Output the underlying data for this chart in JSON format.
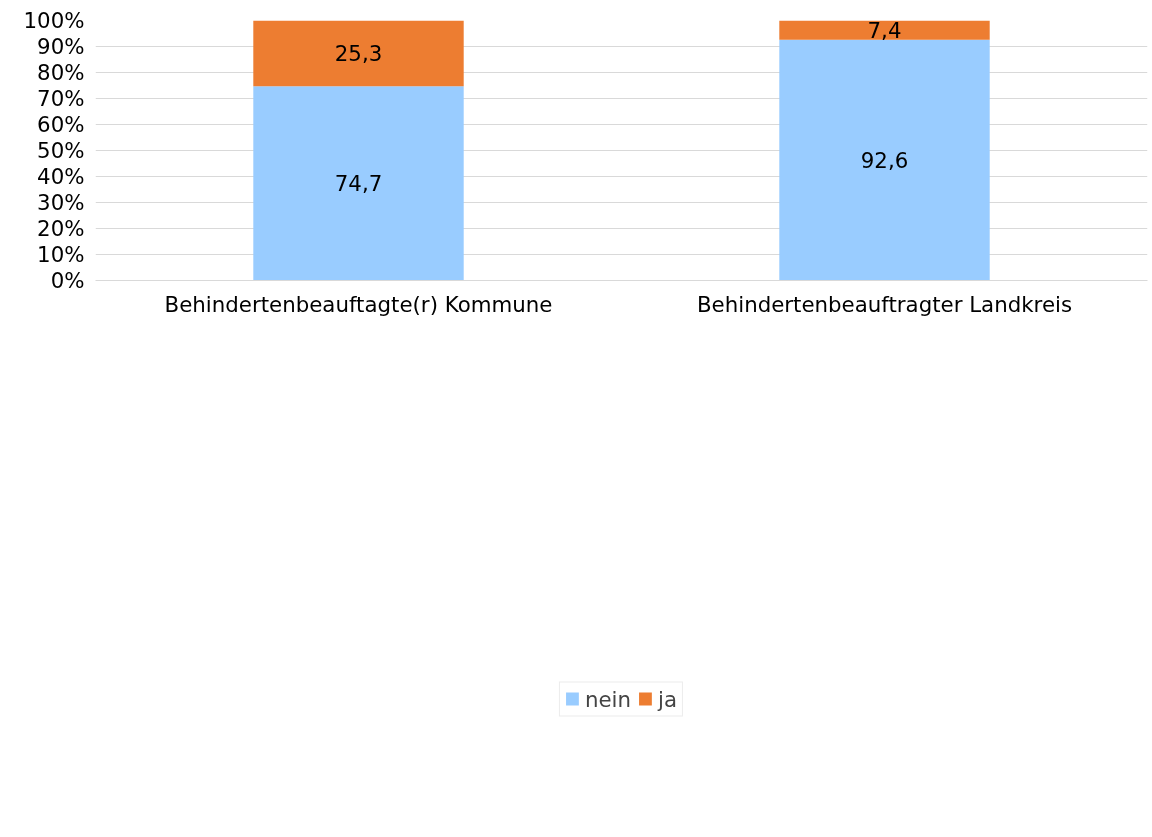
{
  "chart_data": {
    "type": "bar",
    "stacked": true,
    "categories": [
      "Behindertenbeauftagte(r) Kommune",
      "Behindertenbeauftragter Landkreis"
    ],
    "series": [
      {
        "name": "nein",
        "color": "#99ccff",
        "values": [
          74.7,
          92.6
        ],
        "value_labels": [
          "74,7",
          "92,6"
        ]
      },
      {
        "name": "ja",
        "color": "#ed7d31",
        "values": [
          25.3,
          7.4
        ],
        "value_labels": [
          "25,3",
          "7,4"
        ]
      }
    ],
    "ylim": [
      0,
      100
    ],
    "yticks": [
      {
        "value": 0,
        "label": "0%"
      },
      {
        "value": 10,
        "label": "10%"
      },
      {
        "value": 20,
        "label": "20%"
      },
      {
        "value": 30,
        "label": "30%"
      },
      {
        "value": 40,
        "label": "40%"
      },
      {
        "value": 50,
        "label": "50%"
      },
      {
        "value": 60,
        "label": "60%"
      },
      {
        "value": 70,
        "label": "70%"
      },
      {
        "value": 80,
        "label": "80%"
      },
      {
        "value": 90,
        "label": "90%"
      },
      {
        "value": 100,
        "label": "100%"
      }
    ],
    "grid": "y",
    "legend": "bottom"
  }
}
